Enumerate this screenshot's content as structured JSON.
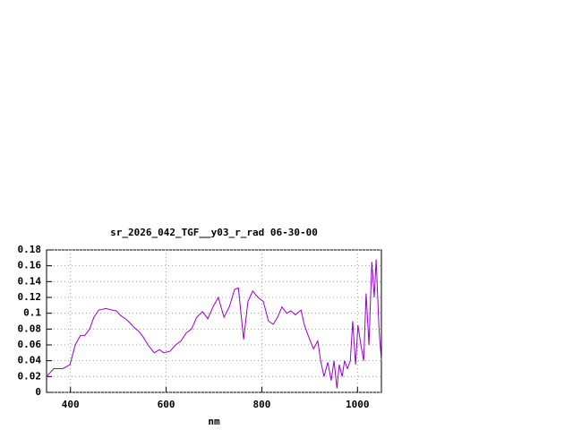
{
  "chart_data": {
    "type": "line",
    "title": "sr_2026_042_TGF__y03_r_rad 06-30-00",
    "x_label": "nm",
    "x": [
      350,
      365,
      384,
      399,
      410,
      421,
      430,
      440,
      449,
      459,
      474,
      487,
      496,
      505,
      515,
      524,
      533,
      543,
      552,
      562,
      575,
      586,
      595,
      608,
      620,
      631,
      642,
      653,
      664,
      676,
      687,
      698,
      709,
      721,
      732,
      743,
      751,
      762,
      771,
      781,
      792,
      803,
      814,
      824,
      833,
      842,
      852,
      861,
      870,
      882,
      889,
      898,
      908,
      917,
      923,
      930,
      938,
      945,
      951,
      957,
      962,
      968,
      973,
      979,
      985,
      990,
      996,
      1001,
      1007,
      1013,
      1018,
      1024,
      1030,
      1035,
      1039,
      1045,
      1050
    ],
    "series": [
      {
        "color": "#9400d3",
        "values": [
          0.02,
          0.03,
          0.03,
          0.035,
          0.06,
          0.072,
          0.072,
          0.08,
          0.095,
          0.104,
          0.106,
          0.104,
          0.103,
          0.097,
          0.093,
          0.088,
          0.082,
          0.077,
          0.07,
          0.06,
          0.05,
          0.054,
          0.05,
          0.052,
          0.06,
          0.065,
          0.075,
          0.08,
          0.095,
          0.102,
          0.093,
          0.108,
          0.12,
          0.095,
          0.108,
          0.13,
          0.132,
          0.067,
          0.115,
          0.128,
          0.12,
          0.115,
          0.09,
          0.086,
          0.095,
          0.108,
          0.1,
          0.103,
          0.098,
          0.104,
          0.085,
          0.07,
          0.055,
          0.065,
          0.04,
          0.02,
          0.038,
          0.015,
          0.04,
          0.005,
          0.035,
          0.02,
          0.04,
          0.03,
          0.04,
          0.09,
          0.035,
          0.085,
          0.06,
          0.04,
          0.125,
          0.06,
          0.165,
          0.12,
          0.168,
          0.08,
          0.04
        ]
      }
    ],
    "xlim": [
      350,
      1050
    ],
    "ylim": [
      0,
      0.18
    ],
    "xticks": [
      400,
      600,
      800,
      1000
    ],
    "yticks": [
      0,
      0.02,
      0.04,
      0.06,
      0.08,
      0.1,
      0.12,
      0.14,
      0.16,
      0.18
    ],
    "grid": true
  }
}
